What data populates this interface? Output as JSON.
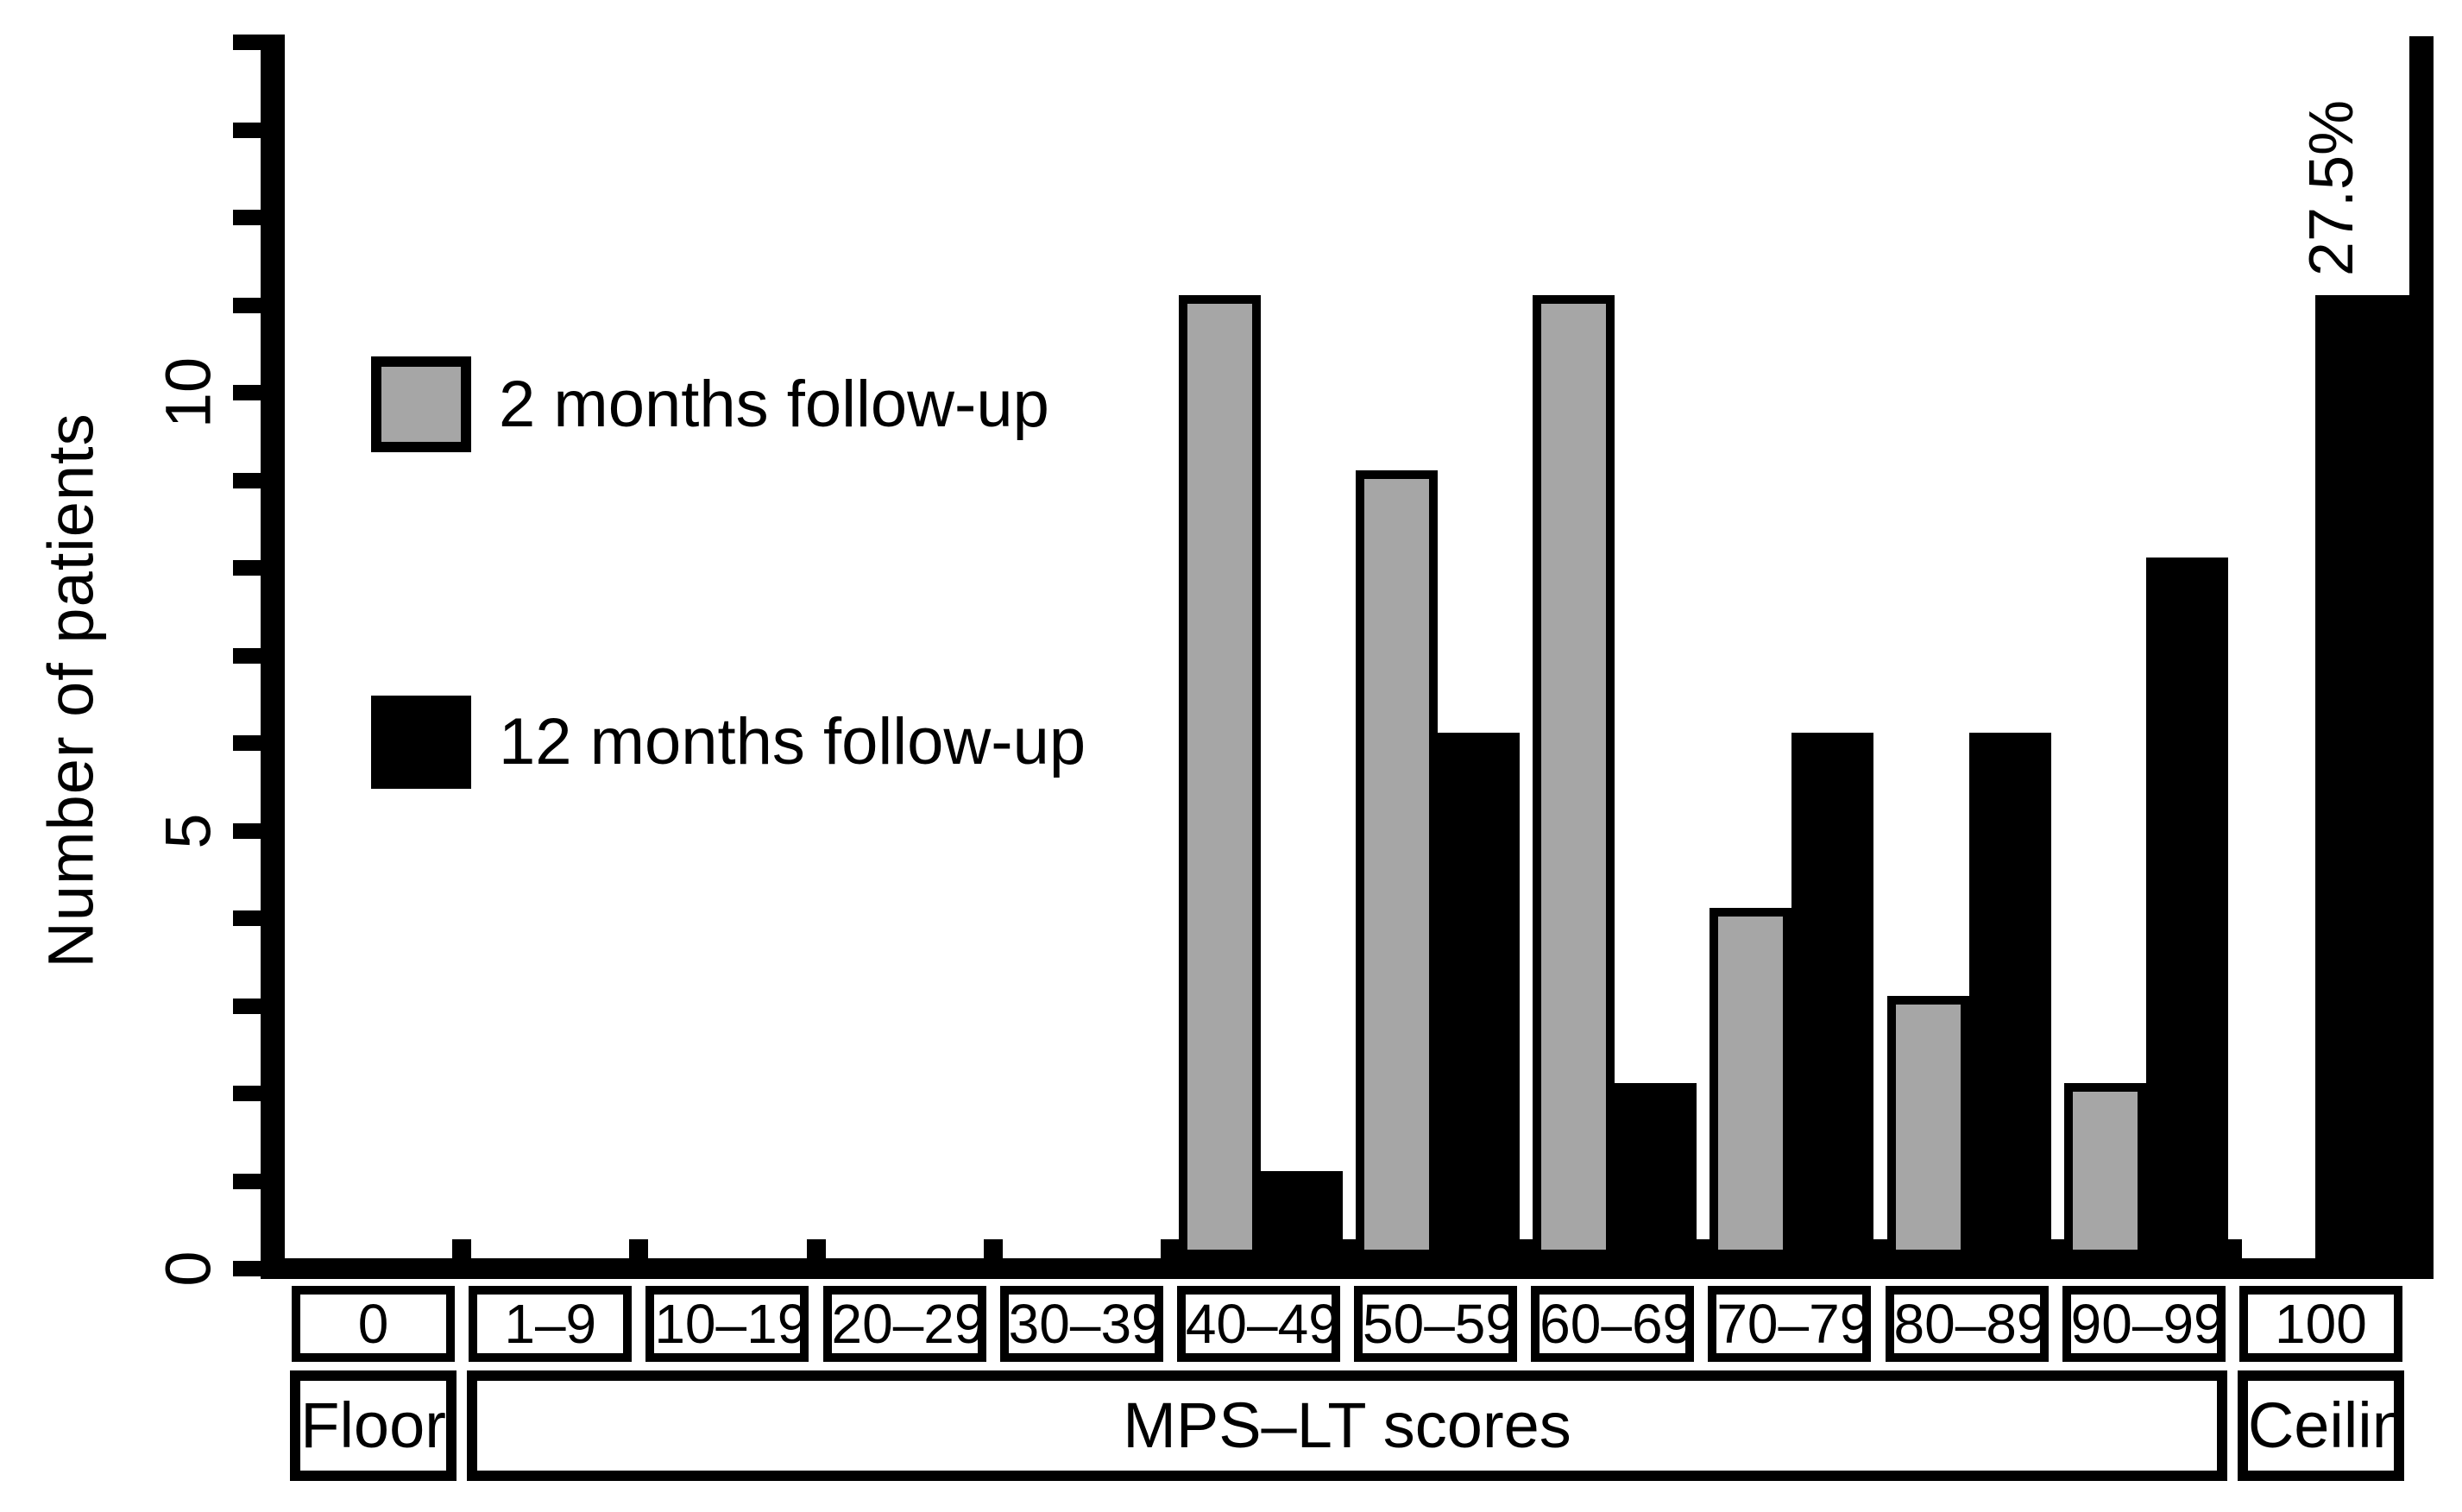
{
  "chart_data": {
    "type": "bar",
    "title": "",
    "ylabel": "Number of patients",
    "xlabel": "",
    "categories": [
      "0",
      "1–9",
      "10–19",
      "20–29",
      "30–39",
      "40–49",
      "50–59",
      "60–69",
      "70–79",
      "80–89",
      "90–99",
      "100"
    ],
    "series": [
      {
        "name": "2 months follow-up",
        "color": "#a6a6a6",
        "values": [
          0,
          0,
          0,
          0,
          0,
          11,
          9,
          11,
          4,
          3,
          2,
          0
        ]
      },
      {
        "name": "12 months follow-up",
        "color": "#000000",
        "values": [
          0,
          0,
          0,
          0,
          0,
          1,
          6,
          2,
          6,
          6,
          8,
          11
        ]
      }
    ],
    "ylim": [
      0,
      14
    ],
    "ytick_interval": 1,
    "ytick_labels": [
      "0",
      "5",
      "10"
    ],
    "ytick_label_values": [
      0,
      5,
      10
    ],
    "annotation": {
      "text": "27.5%",
      "category": "100",
      "series": "12 months follow-up"
    },
    "x_axis_groups": [
      {
        "label": "Floor",
        "span_categories": [
          "0"
        ]
      },
      {
        "label": "MPS–LT scores",
        "span_categories": [
          "1–9",
          "90–99"
        ]
      },
      {
        "label": "Ceiling",
        "span_categories": [
          "100"
        ]
      }
    ],
    "legend_position": "upper-left",
    "grid": false,
    "colors": {
      "background": "#ffffff",
      "axis": "#000000",
      "text": "#000000"
    }
  }
}
